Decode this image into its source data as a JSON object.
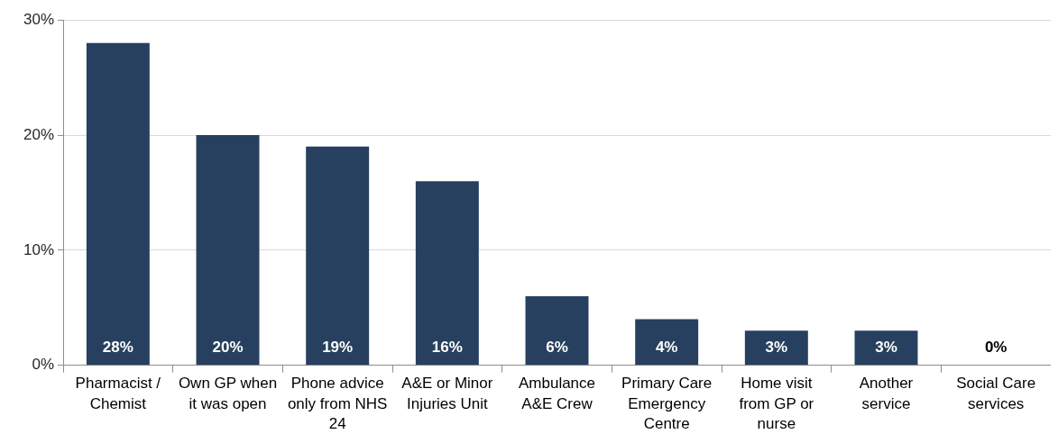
{
  "chart_data": {
    "type": "bar",
    "categories": [
      "Pharmacist / Chemist",
      "Own GP when it was open",
      "Phone advice only from NHS 24",
      "A&E or Minor Injuries Unit",
      "Ambulance A&E Crew",
      "Primary Care Emergency Centre",
      "Home visit from GP or nurse",
      "Another service",
      "Social Care services"
    ],
    "values": [
      28,
      20,
      19,
      16,
      6,
      4,
      3,
      3,
      0
    ],
    "value_labels": [
      "28%",
      "20%",
      "19%",
      "16%",
      "6%",
      "4%",
      "3%",
      "3%",
      "0%"
    ],
    "color": "#27405f",
    "ylim": [
      0,
      30
    ],
    "yticks": [
      {
        "value": 0,
        "label": "0%"
      },
      {
        "value": 10,
        "label": "10%"
      },
      {
        "value": 20,
        "label": "20%"
      },
      {
        "value": 30,
        "label": "30%"
      }
    ],
    "grid": "y"
  }
}
